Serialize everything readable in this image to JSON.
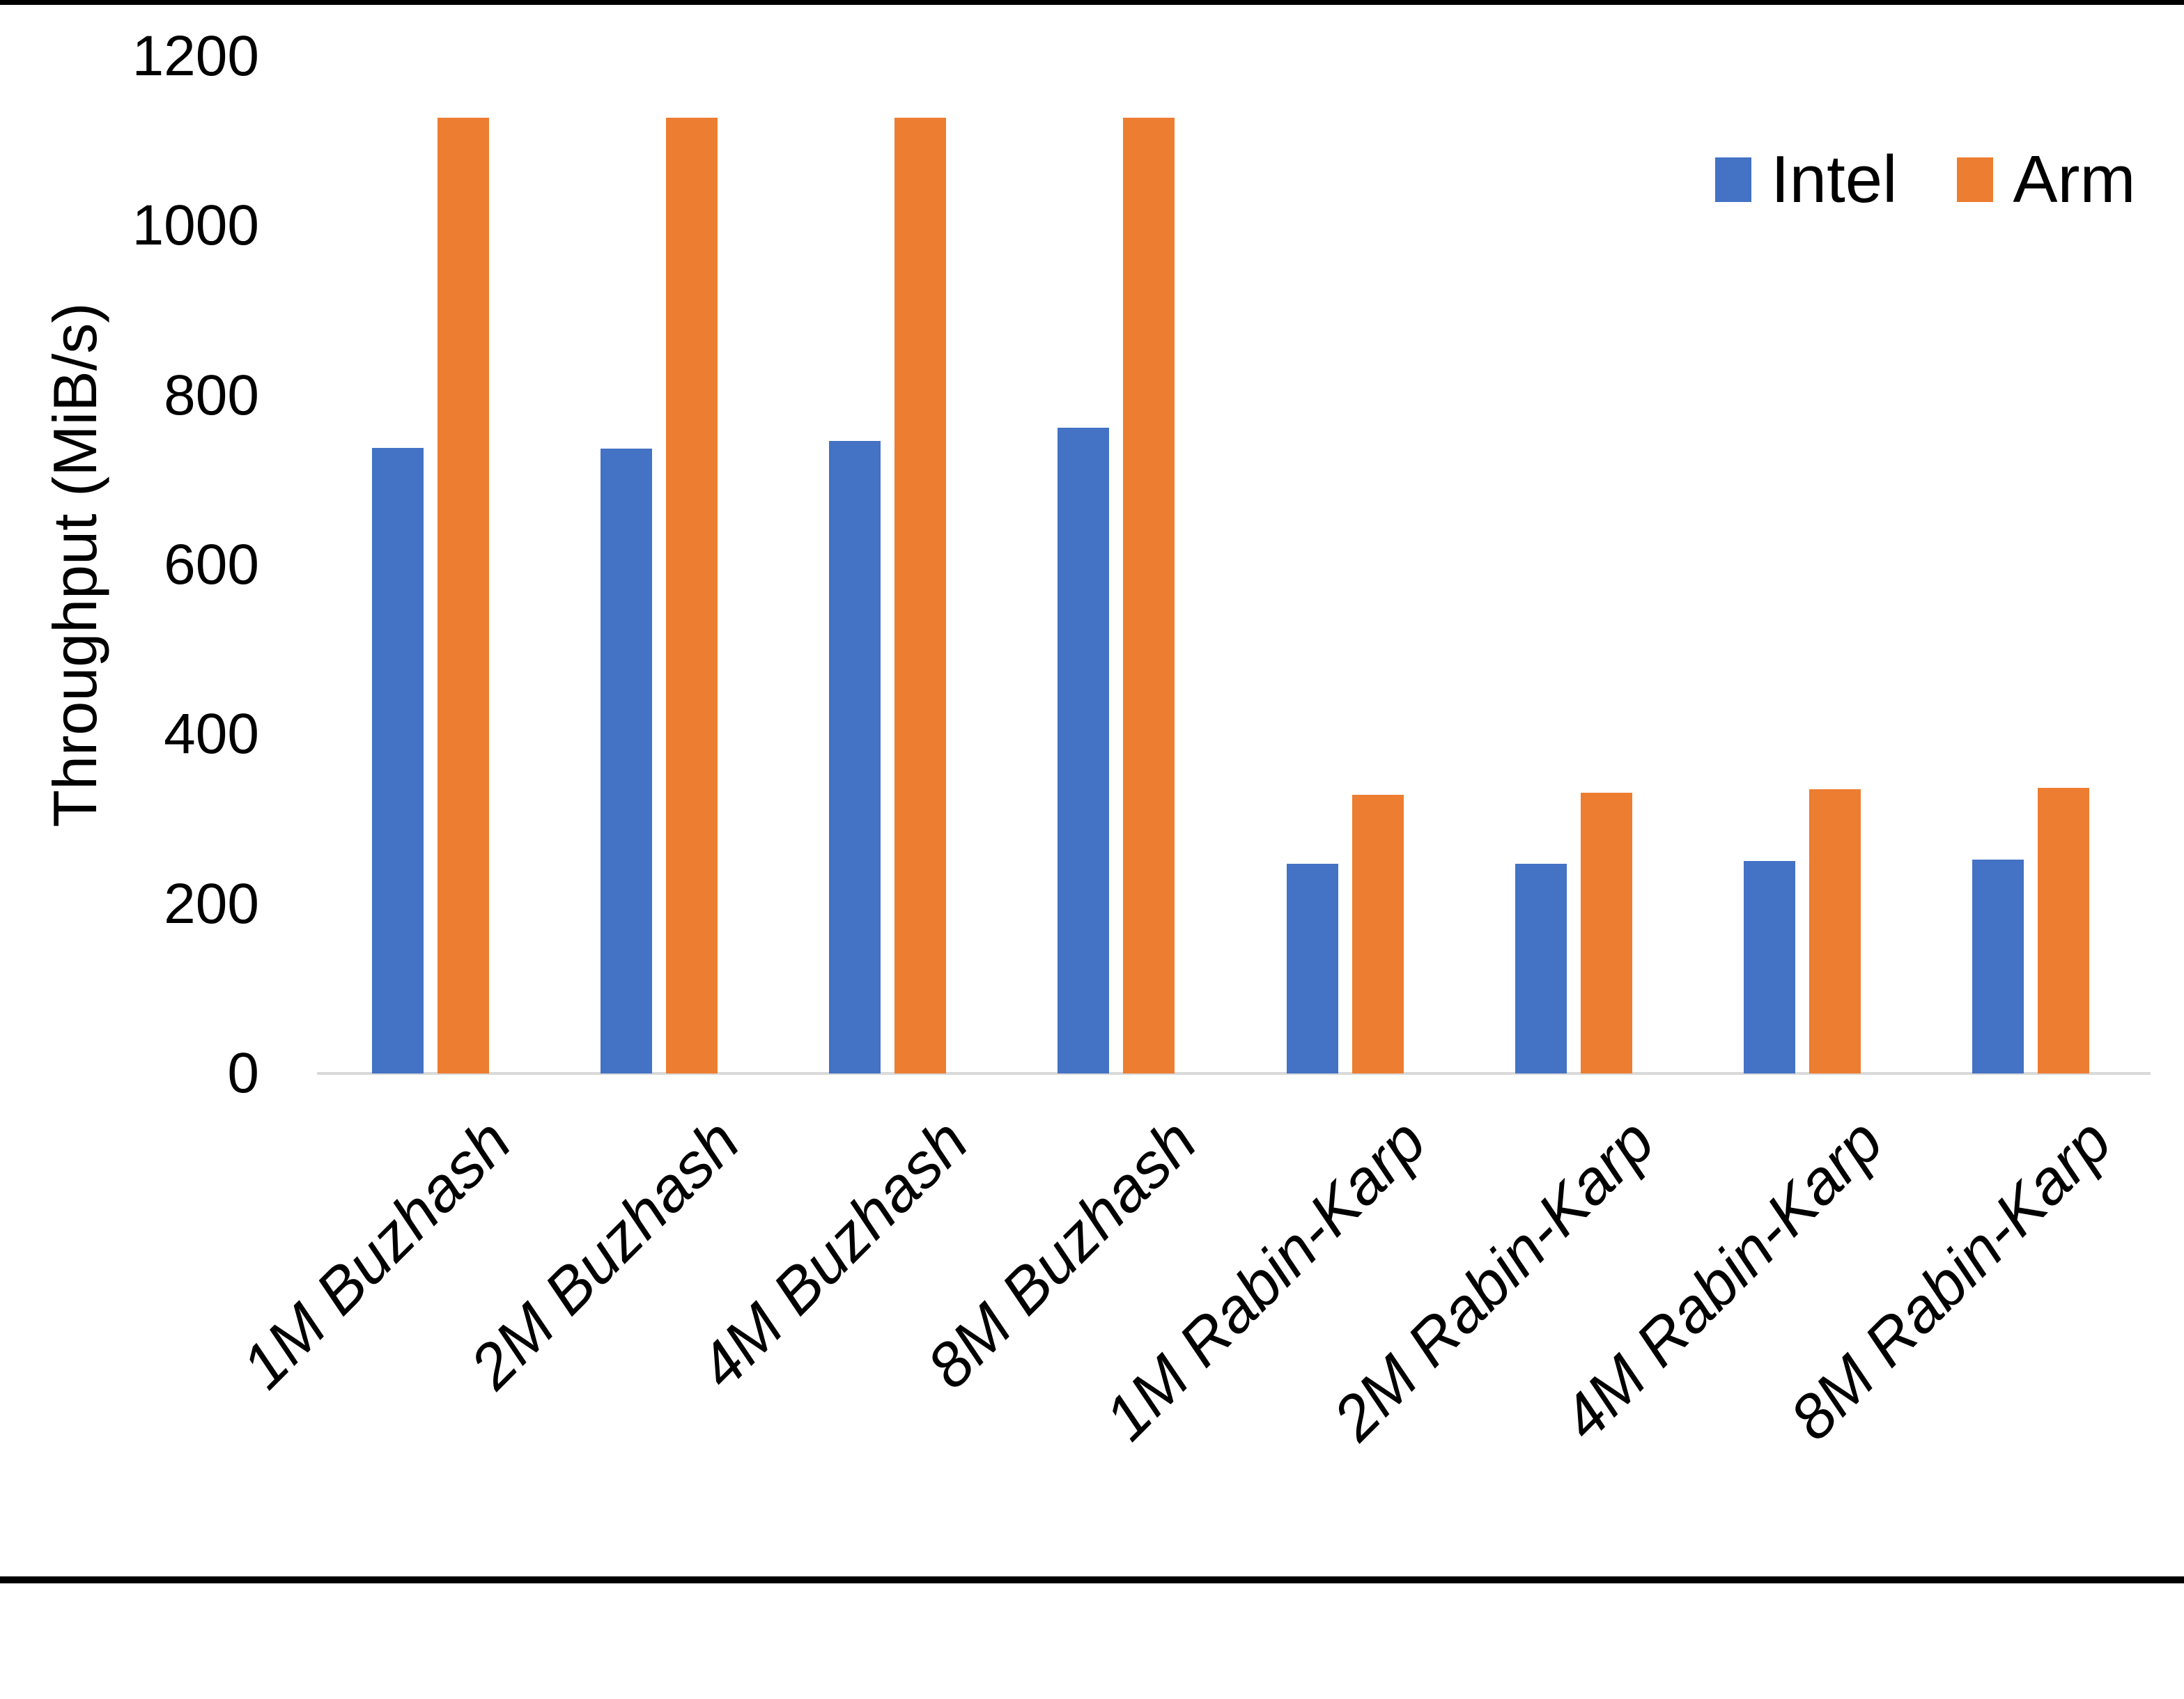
{
  "page": {
    "background": "#ffffff",
    "top_border_color": "#000000",
    "bottom_border_color": "#000000"
  },
  "chart_data": {
    "type": "bar",
    "title": "",
    "xlabel": "",
    "ylabel": "Throughput (MiB/s)",
    "ylim": [
      0,
      1200
    ],
    "yticks": [
      0,
      200,
      400,
      600,
      800,
      1000,
      1200
    ],
    "grid": false,
    "legend_position": "top-right",
    "axis_line_color": "#d9d9d9",
    "text_color": "#000000",
    "categories": [
      "1M Buzhash",
      "2M Buzhash",
      "4M Buzhash",
      "8M Buzhash",
      "1M Rabin-Karp",
      "2M Rabin-Karp",
      "4M Rabin-Karp",
      "8M Rabin-Karp"
    ],
    "series": [
      {
        "name": "Intel",
        "color": "#4472c4",
        "values": [
          738,
          737,
          746,
          762,
          247,
          247,
          251,
          252
        ]
      },
      {
        "name": "Arm",
        "color": "#ed7d31",
        "values": [
          1128,
          1128,
          1128,
          1128,
          329,
          331,
          335,
          337
        ]
      }
    ]
  }
}
